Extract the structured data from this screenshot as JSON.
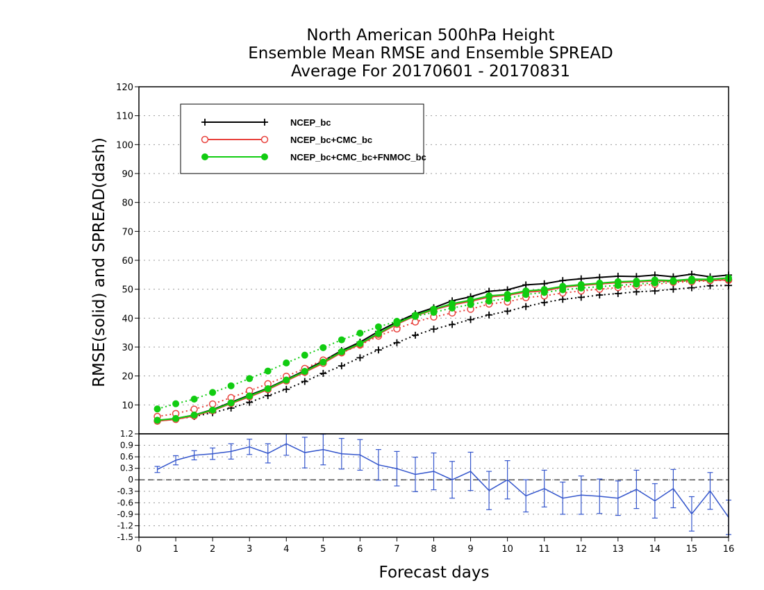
{
  "chart_data": [
    {
      "type": "line",
      "title": [
        "North American 500hPa Height",
        "Ensemble Mean RMSE and Ensemble SPREAD",
        "Average For 20170601 - 20170831"
      ],
      "ylabel": "RMSE(solid) and SPREAD(dash)",
      "xlabel": "Forecast days",
      "xlim": [
        0,
        16
      ],
      "ylim": [
        0,
        120
      ],
      "x_ticks": [
        "0",
        "1",
        "2",
        "3",
        "4",
        "5",
        "6",
        "7",
        "8",
        "9",
        "10",
        "11",
        "12",
        "13",
        "14",
        "15",
        "16"
      ],
      "y_ticks": [
        "10",
        "20",
        "30",
        "40",
        "50",
        "60",
        "70",
        "80",
        "90",
        "100",
        "110",
        "120"
      ],
      "grid": true,
      "legend_position": "top-left",
      "x": [
        0.5,
        1,
        1.5,
        2,
        2.5,
        3,
        3.5,
        4,
        4.5,
        5,
        5.5,
        6,
        6.5,
        7,
        7.5,
        8,
        8.5,
        9,
        9.5,
        10,
        10.5,
        11,
        11.5,
        12,
        12.5,
        13,
        13.5,
        14,
        14.5,
        15,
        15.5,
        16
      ],
      "series": [
        {
          "name": "NCEP_bc",
          "color": "#000000",
          "marker": "plus",
          "rmse": [
            4.5,
            5.3,
            6.5,
            8.4,
            10.9,
            13.4,
            15.8,
            18.8,
            21.9,
            25.2,
            28.8,
            31.7,
            35.4,
            38.7,
            41.5,
            43.6,
            46.0,
            47.4,
            49.3,
            49.8,
            51.5,
            51.9,
            53.0,
            53.6,
            54.1,
            54.5,
            54.4,
            54.9,
            54.3,
            55.2,
            54.3,
            54.9
          ],
          "spread": [
            4.4,
            5.1,
            6.0,
            7.3,
            8.9,
            10.9,
            13.2,
            15.4,
            18.1,
            20.9,
            23.5,
            26.3,
            29.0,
            31.5,
            34.1,
            36.2,
            37.8,
            39.5,
            41.1,
            42.4,
            44.0,
            45.4,
            46.5,
            47.2,
            48.0,
            48.5,
            49.1,
            49.4,
            50.0,
            50.5,
            51.2,
            51.3
          ]
        },
        {
          "name": "NCEP_bc+CMC_bc",
          "color": "#e8413c",
          "marker": "open-circle",
          "rmse": [
            4.4,
            5.0,
            6.2,
            8.0,
            10.5,
            12.8,
            15.3,
            18.3,
            21.3,
            24.4,
            28.1,
            30.9,
            34.4,
            37.9,
            40.8,
            42.9,
            44.6,
            45.8,
            47.3,
            47.9,
            49.0,
            49.4,
            50.7,
            51.3,
            51.8,
            52.3,
            52.5,
            52.9,
            52.7,
            53.1,
            53.0,
            53.3
          ],
          "spread": [
            6.0,
            7.0,
            8.5,
            10.3,
            12.5,
            14.9,
            17.3,
            19.9,
            22.6,
            25.5,
            28.0,
            30.7,
            33.8,
            36.3,
            38.7,
            40.4,
            41.8,
            43.1,
            44.9,
            45.6,
            47.1,
            47.7,
            48.7,
            49.4,
            50.0,
            50.6,
            51.2,
            51.7,
            52.4,
            52.6,
            53.0,
            53.1
          ]
        },
        {
          "name": "NCEP_bc+CMC_bc+FNMOC_bc",
          "color": "#11cc11",
          "marker": "filled-circle",
          "rmse": [
            4.7,
            5.3,
            6.5,
            8.2,
            10.7,
            13.1,
            15.6,
            18.6,
            21.6,
            24.8,
            28.4,
            31.2,
            34.7,
            38.2,
            41.0,
            43.1,
            45.0,
            46.2,
            47.7,
            48.2,
            49.4,
            49.9,
            51.0,
            51.6,
            52.1,
            52.6,
            52.8,
            53.2,
            53.0,
            53.5,
            53.4,
            53.9
          ],
          "spread": [
            8.6,
            10.4,
            12.0,
            14.3,
            16.6,
            19.1,
            21.7,
            24.5,
            27.2,
            29.8,
            32.5,
            34.8,
            37.0,
            38.9,
            40.6,
            42.0,
            43.5,
            44.7,
            45.9,
            46.8,
            48.2,
            48.9,
            49.8,
            50.4,
            50.9,
            51.3,
            51.8,
            52.2,
            52.7,
            52.9,
            53.4,
            53.6
          ]
        }
      ]
    },
    {
      "type": "line",
      "subtype": "errorbar",
      "xlim": [
        0,
        16
      ],
      "ylim": [
        -1.5,
        1.2
      ],
      "y_ticks": [
        "-1.5",
        "-1.2",
        "-0.9",
        "-0.6",
        "-0.3",
        "0",
        "0.3",
        "0.6",
        "0.9",
        "1.2"
      ],
      "grid": true,
      "color": "#3355cc",
      "zero_line": true,
      "x": [
        0.5,
        1,
        1.5,
        2,
        2.5,
        3,
        3.5,
        4,
        4.5,
        5,
        5.5,
        6,
        6.5,
        7,
        7.5,
        8,
        8.5,
        9,
        9.5,
        10,
        10.5,
        11,
        11.5,
        12,
        12.5,
        13,
        13.5,
        14,
        14.5,
        15,
        15.5,
        16
      ],
      "values": [
        0.27,
        0.51,
        0.64,
        0.68,
        0.74,
        0.86,
        0.69,
        0.94,
        0.71,
        0.79,
        0.68,
        0.65,
        0.39,
        0.29,
        0.14,
        0.22,
        0.0,
        0.22,
        -0.28,
        0.0,
        -0.42,
        -0.23,
        -0.48,
        -0.4,
        -0.43,
        -0.48,
        -0.25,
        -0.55,
        -0.23,
        -0.89,
        -0.29,
        -0.98
      ],
      "err": [
        0.08,
        0.12,
        0.12,
        0.15,
        0.2,
        0.2,
        0.25,
        0.3,
        0.4,
        0.4,
        0.4,
        0.4,
        0.4,
        0.45,
        0.45,
        0.48,
        0.48,
        0.5,
        0.5,
        0.5,
        0.42,
        0.48,
        0.42,
        0.5,
        0.45,
        0.45,
        0.5,
        0.45,
        0.5,
        0.45,
        0.48,
        0.45
      ]
    }
  ]
}
